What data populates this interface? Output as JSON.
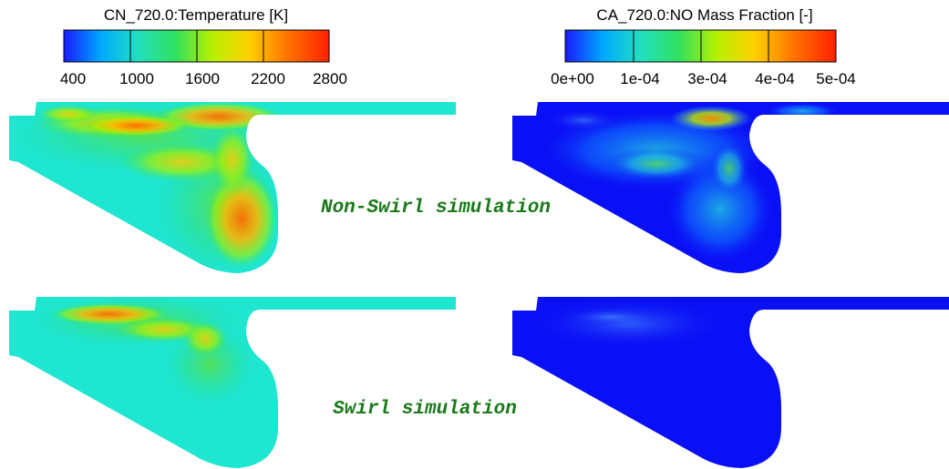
{
  "legends": [
    {
      "title": "CN_720.0:Temperature [K]",
      "ticks": [
        "400",
        "1000",
        "1600",
        "2200",
        "2800"
      ],
      "colors": [
        "#1a1aff",
        "#00a8ff",
        "#22e0c0",
        "#30e060",
        "#b8f000",
        "#ffd000",
        "#ff7000",
        "#ff2000"
      ]
    },
    {
      "title": "CA_720.0:NO Mass Fraction [-]",
      "ticks": [
        "0e+00",
        "1e-04",
        "3e-04",
        "4e-04",
        "5e-04"
      ],
      "colors": [
        "#1a1aff",
        "#00a8ff",
        "#22e0c0",
        "#30e060",
        "#b8f000",
        "#ffd000",
        "#ff7000",
        "#ff2000"
      ]
    }
  ],
  "captions": {
    "non_swirl": "Non-Swirl simulation",
    "swirl": "Swirl simulation"
  },
  "field_colors": {
    "temperature_base": "#1fe6d0",
    "no_base": "#0a10f5"
  }
}
